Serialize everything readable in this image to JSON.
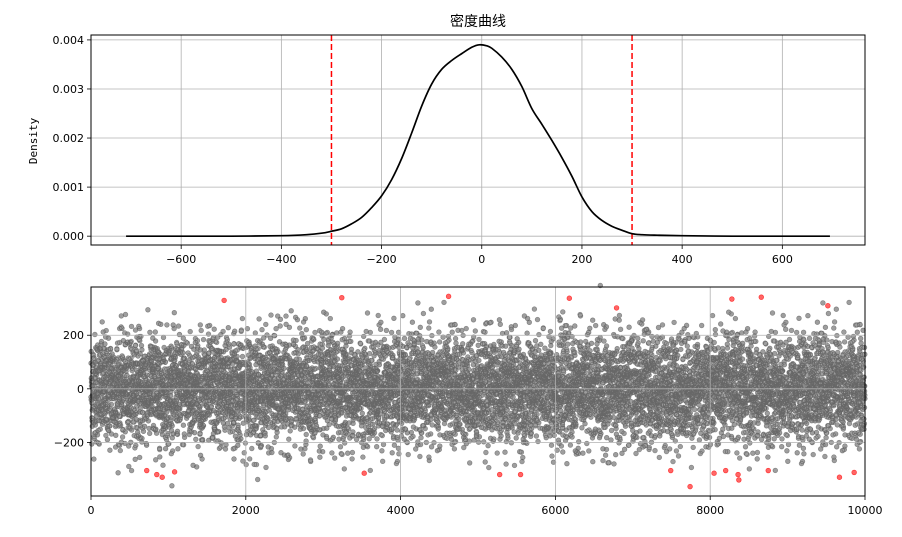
{
  "chart_data": [
    {
      "type": "line",
      "title": "密度曲线",
      "xlabel": "",
      "ylabel": "Density",
      "xlim": [
        -780,
        765
      ],
      "ylim": [
        -0.00018,
        0.0041
      ],
      "xticks": [
        -600,
        -400,
        -200,
        0,
        200,
        400,
        600
      ],
      "xtick_labels": [
        "−600",
        "−400",
        "−200",
        "0",
        "200",
        "400",
        "600"
      ],
      "yticks": [
        0.0,
        0.001,
        0.002,
        0.003,
        0.004
      ],
      "ytick_labels": [
        "0.000",
        "0.001",
        "0.002",
        "0.003",
        "0.004"
      ],
      "grid": true,
      "line_color": "#000000",
      "threshold_color": "#ff0000",
      "thresholds": [
        -300,
        300
      ],
      "x": [
        -710,
        -600,
        -500,
        -400,
        -350,
        -320,
        -300,
        -280,
        -260,
        -240,
        -220,
        -200,
        -180,
        -160,
        -140,
        -120,
        -100,
        -80,
        -60,
        -40,
        -20,
        -5,
        10,
        20,
        40,
        60,
        80,
        100,
        120,
        140,
        160,
        180,
        200,
        220,
        240,
        260,
        280,
        300,
        320,
        350,
        400,
        500,
        600,
        695
      ],
      "y": [
        0.0,
        0.0,
        0.0,
        1e-05,
        3e-05,
        6e-05,
        0.0001,
        0.00015,
        0.00025,
        0.00038,
        0.00058,
        0.00082,
        0.00115,
        0.00158,
        0.0021,
        0.00265,
        0.0031,
        0.0034,
        0.00358,
        0.00372,
        0.00385,
        0.0039,
        0.00388,
        0.00383,
        0.00365,
        0.0034,
        0.00305,
        0.0026,
        0.00228,
        0.00195,
        0.0016,
        0.00122,
        0.0008,
        0.0005,
        0.00032,
        0.0002,
        0.00012,
        5e-05,
        3e-05,
        2e-05,
        1e-05,
        0.0,
        0.0,
        0.0
      ]
    },
    {
      "type": "scatter",
      "xlim": [
        0,
        10000
      ],
      "ylim": [
        -400,
        380
      ],
      "xticks": [
        0,
        2000,
        4000,
        6000,
        8000,
        10000
      ],
      "xtick_labels": [
        "0",
        "2000",
        "4000",
        "6000",
        "8000",
        "10000"
      ],
      "yticks": [
        -200,
        0,
        200
      ],
      "ytick_labels": [
        "−200",
        "0",
        "200"
      ],
      "grid": true,
      "n_points": 10000,
      "normal_color": "#000000",
      "outlier_color": "#ff0000",
      "outliers": [
        {
          "x": 720,
          "y": -305
        },
        {
          "x": 850,
          "y": -320
        },
        {
          "x": 920,
          "y": -330
        },
        {
          "x": 1080,
          "y": -310
        },
        {
          "x": 1720,
          "y": 330
        },
        {
          "x": 3240,
          "y": 340
        },
        {
          "x": 3530,
          "y": -315
        },
        {
          "x": 4620,
          "y": 345
        },
        {
          "x": 5280,
          "y": -320
        },
        {
          "x": 5550,
          "y": -320
        },
        {
          "x": 6180,
          "y": 338
        },
        {
          "x": 6790,
          "y": 302
        },
        {
          "x": 7490,
          "y": -305
        },
        {
          "x": 7740,
          "y": -365
        },
        {
          "x": 8050,
          "y": -315
        },
        {
          "x": 8200,
          "y": -305
        },
        {
          "x": 8280,
          "y": 335
        },
        {
          "x": 8360,
          "y": -320
        },
        {
          "x": 8370,
          "y": -340
        },
        {
          "x": 8660,
          "y": 342
        },
        {
          "x": 8750,
          "y": -305
        },
        {
          "x": 9520,
          "y": 310
        },
        {
          "x": 9670,
          "y": -330
        },
        {
          "x": 9860,
          "y": -312
        }
      ]
    }
  ]
}
